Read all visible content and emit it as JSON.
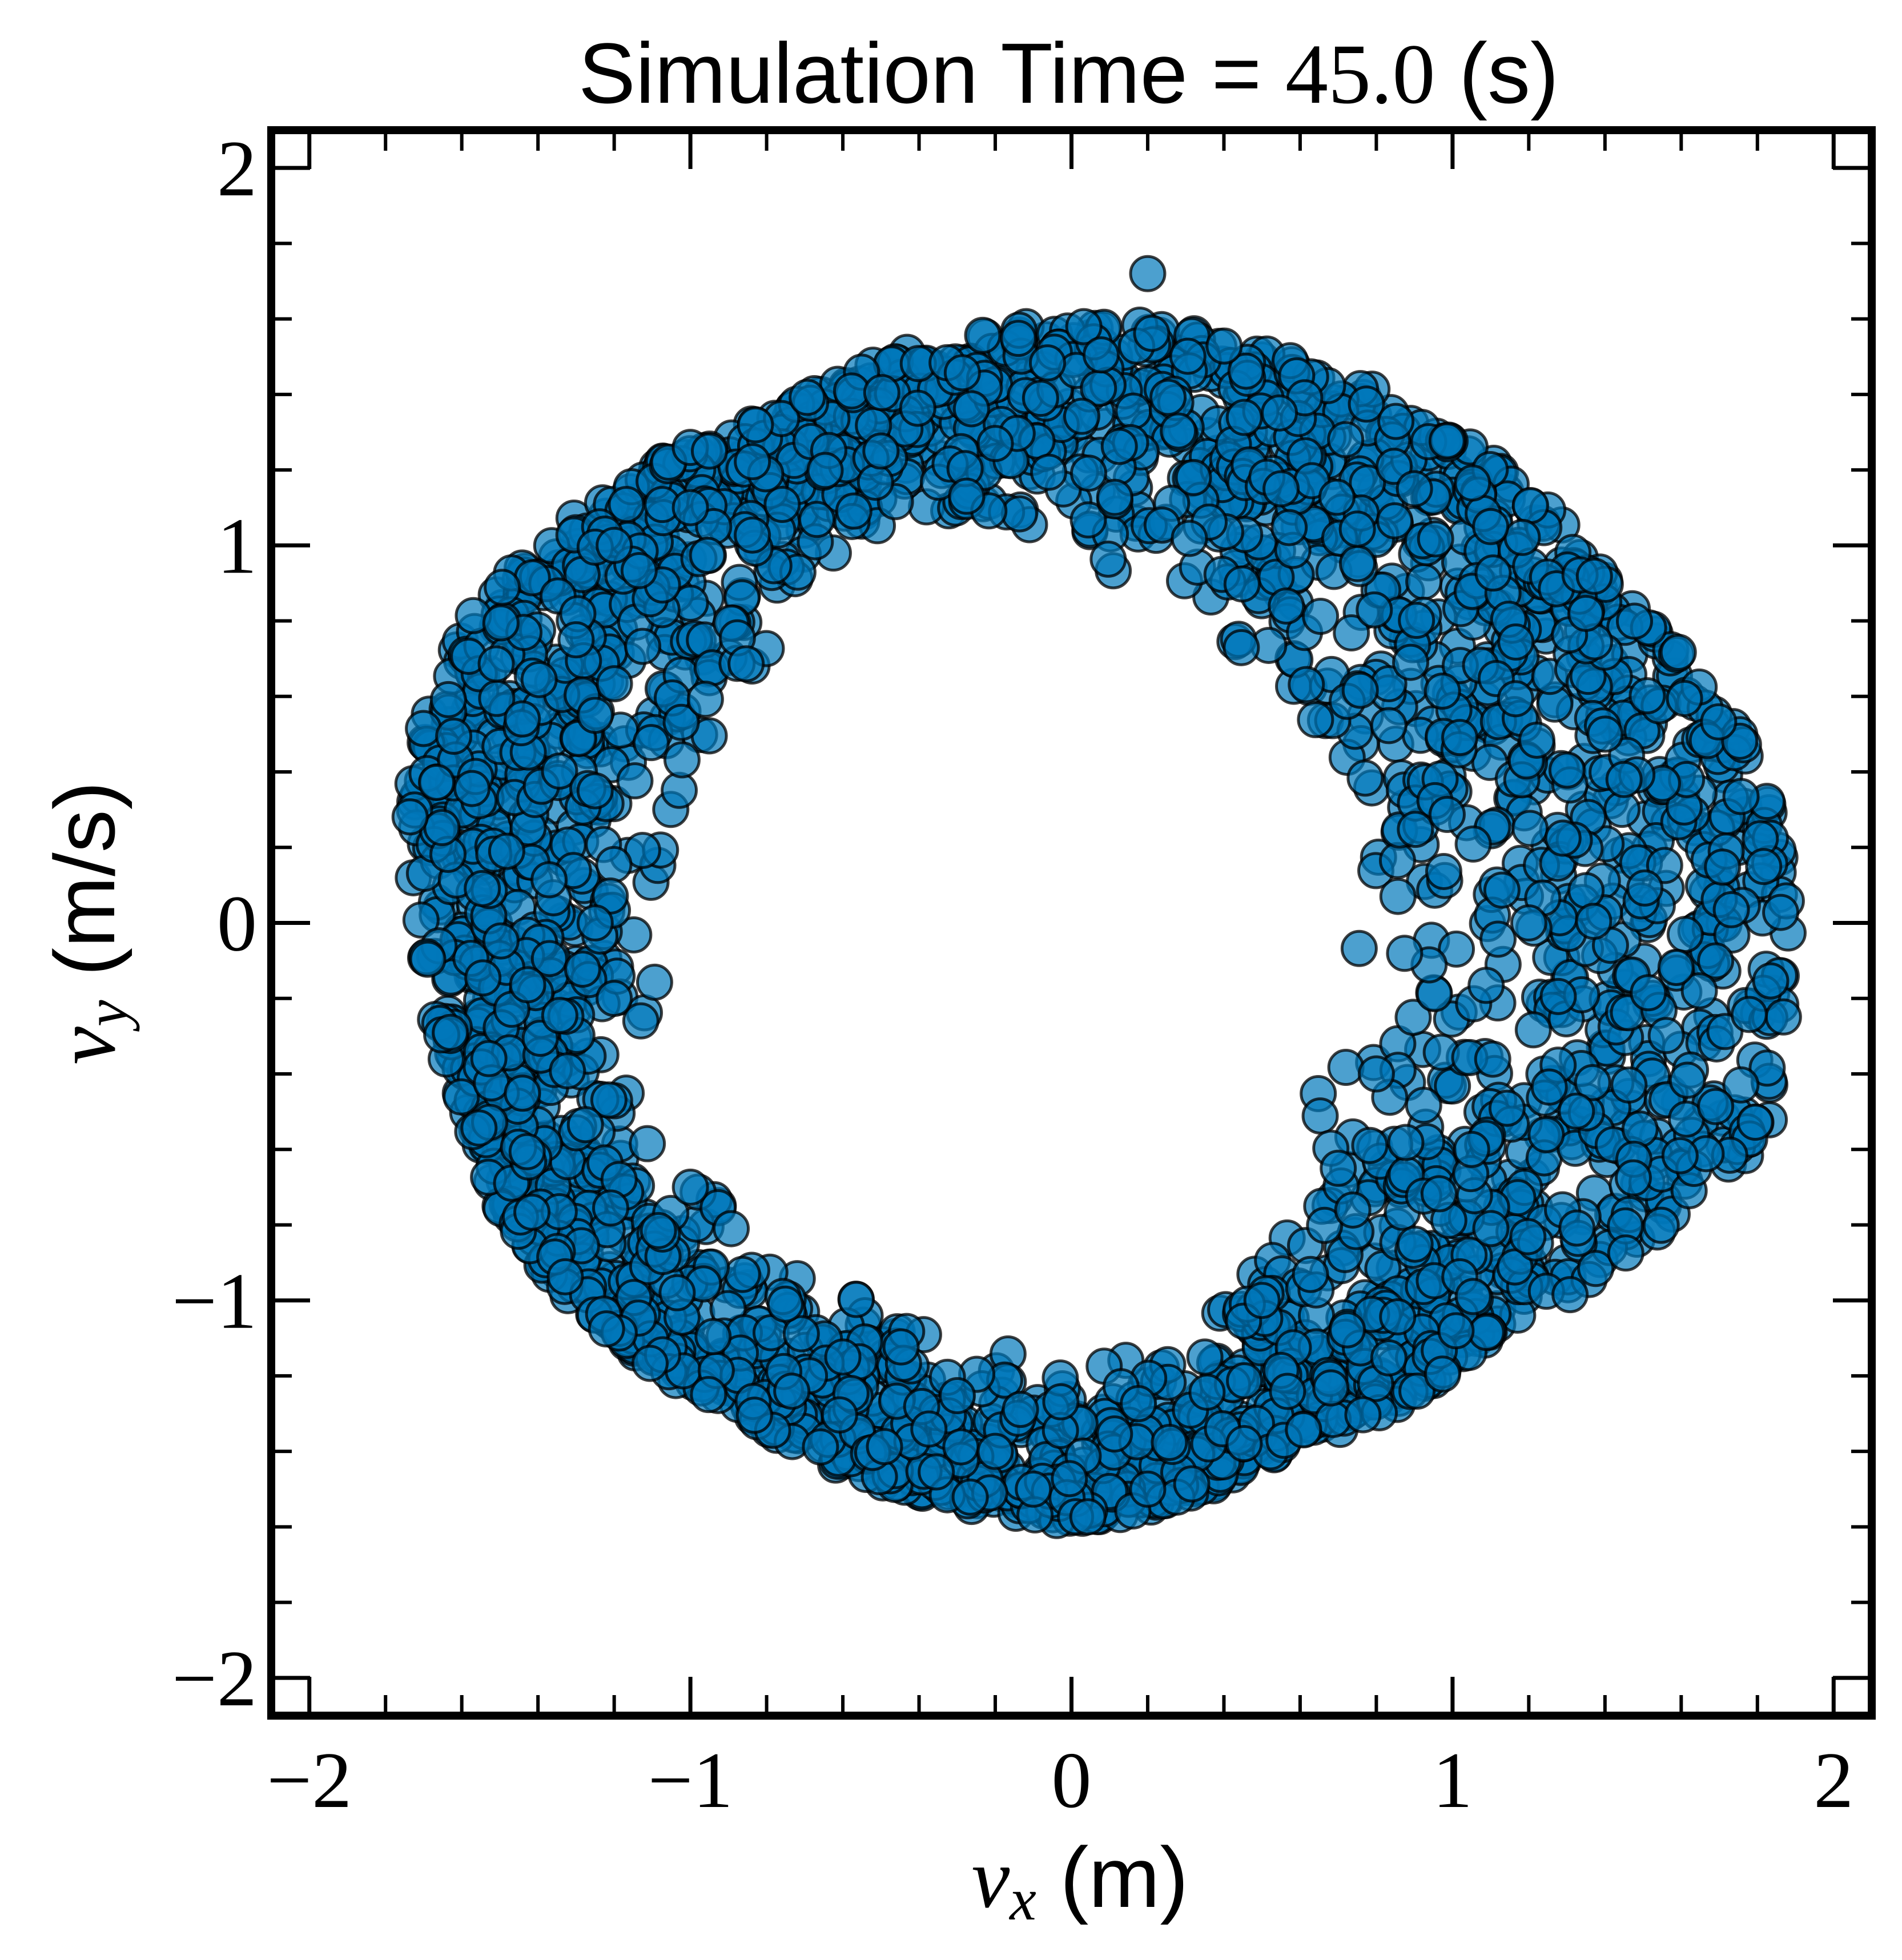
{
  "chart_data": {
    "type": "scatter",
    "title": {
      "prefix": "Simulation Time = ",
      "value": "45.0",
      "suffix": " (s)"
    },
    "xlabel": {
      "symbol": "v",
      "subscript": "x",
      "unit": " (m)"
    },
    "ylabel": {
      "symbol": "v",
      "subscript": "y",
      "unit": " (m/s)"
    },
    "xlim": [
      -2.1,
      2.1
    ],
    "ylim": [
      -2.1,
      2.1
    ],
    "xticks": [
      -2,
      -1,
      0,
      1,
      2
    ],
    "yticks": [
      -2,
      -1,
      0,
      1,
      2
    ],
    "xtick_labels": [
      "−2",
      "−1",
      "0",
      "1",
      "2"
    ],
    "ytick_labels": [
      "−2",
      "−1",
      "0",
      "1",
      "2"
    ],
    "minor_tick_step": 0.2,
    "grid": false,
    "marker_color": "#0077BB",
    "marker_edge_color": "#000000",
    "marker_alpha": 0.7,
    "series": [
      {
        "values_shape": "dense annular ring of points",
        "ring_boundary_outer": [
          [
            0.0,
            1.65
          ],
          [
            0.6,
            1.55
          ],
          [
            1.1,
            1.3
          ],
          [
            1.5,
            0.9
          ],
          [
            1.85,
            0.45
          ],
          [
            1.95,
            -0.1
          ],
          [
            1.9,
            -0.55
          ],
          [
            1.6,
            -0.85
          ],
          [
            1.2,
            -1.1
          ],
          [
            0.6,
            -1.45
          ],
          [
            0.0,
            -1.65
          ],
          [
            -0.3,
            -1.6
          ],
          [
            -0.9,
            -1.35
          ],
          [
            -1.3,
            -1.1
          ],
          [
            -1.55,
            -0.8
          ],
          [
            -1.65,
            -0.5
          ],
          [
            -1.75,
            -0.2
          ],
          [
            -1.8,
            0.3
          ],
          [
            -1.7,
            0.75
          ],
          [
            -1.3,
            1.15
          ],
          [
            -0.8,
            1.4
          ],
          [
            -0.35,
            1.6
          ]
        ],
        "ring_boundary_inner": [
          [
            0.0,
            0.9
          ],
          [
            0.35,
            0.65
          ],
          [
            0.6,
            0.45
          ],
          [
            0.65,
            0.0
          ],
          [
            0.55,
            -0.35
          ],
          [
            0.5,
            -0.75
          ],
          [
            0.3,
            -1.0
          ],
          [
            0.0,
            -1.1
          ],
          [
            -0.4,
            -0.95
          ],
          [
            -0.85,
            -0.7
          ],
          [
            -1.1,
            -0.5
          ],
          [
            -1.0,
            -0.15
          ],
          [
            -0.95,
            0.25
          ],
          [
            -0.75,
            0.55
          ],
          [
            -0.6,
            0.85
          ],
          [
            -0.4,
            0.95
          ]
        ],
        "highlight_points": [
          [
            0.2,
            1.72
          ],
          [
            -0.2,
            1.27
          ],
          [
            -0.5,
            1.25
          ],
          [
            0.55,
            1.15
          ],
          [
            0.9,
            1.15
          ],
          [
            1.1,
            1.05
          ],
          [
            1.35,
            0.82
          ],
          [
            1.4,
            0.5
          ],
          [
            1.45,
            0.38
          ],
          [
            1.2,
            0.0
          ],
          [
            0.8,
            -0.4
          ],
          [
            1.05,
            -0.6
          ],
          [
            0.7,
            -0.65
          ],
          [
            0.5,
            -1.0
          ],
          [
            0.35,
            -1.15
          ],
          [
            -0.1,
            -1.5
          ],
          [
            0.2,
            -1.5
          ],
          [
            -0.6,
            -1.15
          ],
          [
            -1.0,
            -0.7
          ],
          [
            -1.2,
            -0.2
          ],
          [
            -1.25,
            0.0
          ],
          [
            -1.25,
            0.35
          ],
          [
            -1.25,
            0.55
          ],
          [
            -1.3,
            0.75
          ],
          [
            -1.2,
            1.0
          ],
          [
            -1.0,
            1.1
          ],
          [
            -0.95,
            1.25
          ],
          [
            -0.2,
            -1.4
          ]
        ]
      }
    ]
  }
}
